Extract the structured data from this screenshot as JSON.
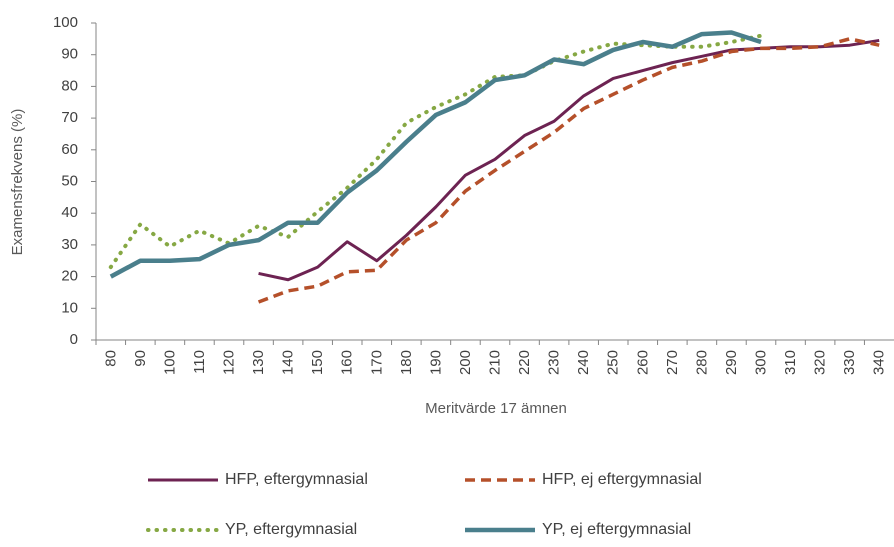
{
  "chart_data": {
    "type": "line",
    "y_label": "Examensfrekvens (%)",
    "x_label": "Meritvärde 17 ämnen",
    "categories": [
      "80",
      "90",
      "100",
      "110",
      "120",
      "130",
      "140",
      "150",
      "160",
      "170",
      "180",
      "190",
      "200",
      "210",
      "220",
      "230",
      "240",
      "250",
      "260",
      "270",
      "280",
      "290",
      "300",
      "310",
      "320",
      "330",
      "340"
    ],
    "ylim": [
      0,
      100
    ],
    "yticks": [
      0,
      10,
      20,
      30,
      40,
      50,
      60,
      70,
      80,
      90,
      100
    ],
    "grid": false,
    "series": [
      {
        "name": "HFP, eftergymnasial",
        "color": "#6d2352",
        "style": "solid",
        "values": [
          null,
          null,
          null,
          null,
          null,
          21,
          19,
          23,
          31,
          25,
          33,
          42,
          52,
          57,
          64.5,
          69,
          77,
          82.5,
          85,
          87.5,
          89.5,
          91.5,
          92,
          92.5,
          92.5,
          93,
          94.5
        ]
      },
      {
        "name": "HFP, ej eftergymnasial",
        "color": "#b5502a",
        "style": "dashed",
        "values": [
          null,
          null,
          null,
          null,
          null,
          12,
          15.5,
          17,
          21.5,
          22,
          31.5,
          37,
          47,
          53.5,
          59.5,
          65.5,
          73,
          77.5,
          82,
          86,
          88,
          91,
          92,
          92,
          92.5,
          95,
          93
        ]
      },
      {
        "name": "YP, eftergymnasial",
        "color": "#86a844",
        "style": "dotted",
        "values": [
          23,
          36.5,
          29.5,
          34.5,
          30.5,
          36,
          32.5,
          40.5,
          48,
          57,
          68.5,
          73.5,
          77.5,
          83,
          83.5,
          88,
          91,
          93.5,
          93,
          92.5,
          92.5,
          94,
          96,
          null,
          null,
          null,
          null
        ]
      },
      {
        "name": "YP, ej eftergymnasial",
        "color": "#4a7f8c",
        "style": "solid-thick",
        "values": [
          20,
          25,
          25,
          25.5,
          30,
          31.5,
          37,
          37,
          46.5,
          53.5,
          62.5,
          71,
          75,
          82,
          83.5,
          88.5,
          87,
          91.5,
          94,
          92.5,
          96.5,
          97,
          94,
          null,
          null,
          null,
          null
        ]
      }
    ]
  }
}
